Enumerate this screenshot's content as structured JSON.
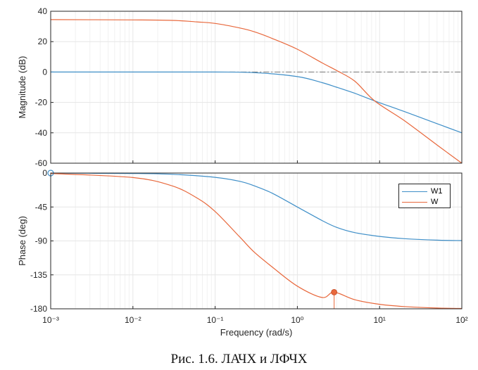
{
  "caption": "Рис. 1.6. ЛАЧХ и ЛФЧХ",
  "colors": {
    "W1": "#3f8fc8",
    "W": "#e8683c",
    "grid": "#e6e6e6",
    "axes": "#262626"
  },
  "chart_data": [
    {
      "type": "line",
      "panel": "magnitude",
      "xscale": "log",
      "xlim": [
        0.001,
        100
      ],
      "ylim": [
        -60,
        40
      ],
      "yticks": [
        40,
        20,
        0,
        -20,
        -40,
        -60
      ],
      "ytick_labels": [
        "40",
        "20",
        "0",
        "-20",
        "-40",
        "-60"
      ],
      "ylabel": "Magnitude (dB)",
      "grid": true,
      "reference_line": 0,
      "series": [
        {
          "name": "W1",
          "x": [
            0.001,
            0.01,
            0.1,
            0.3,
            1,
            2,
            3,
            5,
            8.7,
            20,
            50,
            100
          ],
          "y": [
            0,
            0,
            0,
            -0.4,
            -3,
            -7,
            -10,
            -14,
            -19,
            -26,
            -34,
            -40
          ]
        },
        {
          "name": "W",
          "x": [
            0.001,
            0.01,
            0.03,
            0.06,
            0.1,
            0.2,
            0.3,
            0.5,
            1,
            2,
            3,
            5,
            8.7,
            20,
            50,
            100
          ],
          "y": [
            34.5,
            34.3,
            34,
            33,
            32,
            29,
            26.5,
            22,
            15,
            6,
            1,
            -6,
            -19,
            -32,
            -48,
            -60
          ]
        }
      ]
    },
    {
      "type": "line",
      "panel": "phase",
      "xscale": "log",
      "xlim": [
        0.001,
        100
      ],
      "ylim": [
        -180,
        0
      ],
      "xticks": [
        0.001,
        0.01,
        0.1,
        1,
        10,
        100
      ],
      "yticks": [
        0,
        -45,
        -90,
        -135,
        -180
      ],
      "ytick_labels": [
        "0",
        "-45",
        "-90",
        "-135",
        "-180"
      ],
      "ylabel": "Phase (deg)",
      "xlabel": "Frequency  (rad/s)",
      "grid": true,
      "legend": "top-right",
      "series": [
        {
          "name": "W1",
          "x": [
            0.001,
            0.01,
            0.03,
            0.1,
            0.2,
            0.3,
            0.5,
            1,
            2,
            3,
            5,
            10,
            20,
            50,
            100
          ],
          "y": [
            -0.1,
            -0.6,
            -1.7,
            -5.7,
            -11,
            -17,
            -27,
            -45,
            -63,
            -72,
            -79,
            -84,
            -87,
            -89,
            -89.5
          ]
        },
        {
          "name": "W",
          "x": [
            0.001,
            0.01,
            0.03,
            0.06,
            0.1,
            0.2,
            0.3,
            0.5,
            1,
            2,
            2.8,
            5,
            10,
            20,
            50,
            100
          ],
          "y": [
            -0.6,
            -6,
            -17,
            -33,
            -51,
            -85,
            -105,
            -125,
            -150,
            -165,
            -158,
            -168,
            -174,
            -177,
            -179,
            -179.5
          ]
        }
      ],
      "markers": [
        {
          "series": "W",
          "x": 2.8,
          "y": -158
        }
      ]
    }
  ]
}
